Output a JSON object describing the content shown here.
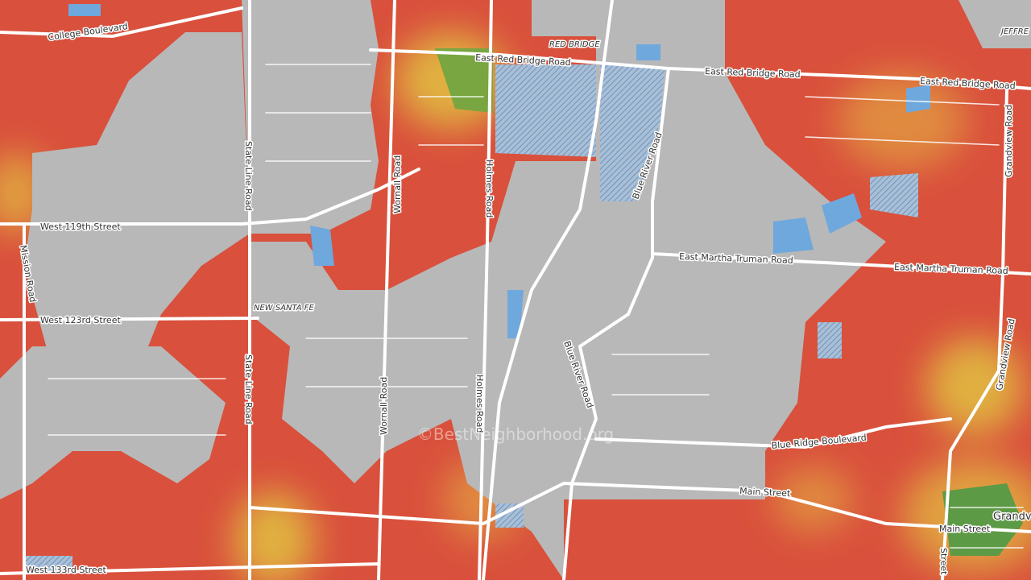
{
  "labels": [
    {
      "text": "College Boulevard"
    },
    {
      "text": "RED BRIDGE"
    },
    {
      "text": "East Red Bridge Road"
    },
    {
      "text": "East Red Bridge Road"
    },
    {
      "text": "East Red Bridge Road"
    },
    {
      "text": "JEFFRE"
    },
    {
      "text": "State Line Road"
    },
    {
      "text": "State Line Road"
    },
    {
      "text": "Wornall Road"
    },
    {
      "text": "Wornall Road"
    },
    {
      "text": "Holmes Road"
    },
    {
      "text": "Holmes Road"
    },
    {
      "text": "Blue River Road"
    },
    {
      "text": "Blue River Road"
    },
    {
      "text": "West 119th Street"
    },
    {
      "text": "Mission Road"
    },
    {
      "text": "East Martha Truman Road"
    },
    {
      "text": "East Martha Truman Road"
    },
    {
      "text": "West 123rd Street"
    },
    {
      "text": "NEW SANTA FE"
    },
    {
      "text": "Grandview Road"
    },
    {
      "text": "Grandview Road"
    },
    {
      "text": "Blue Ridge Boulevard"
    },
    {
      "text": "Main Street"
    },
    {
      "text": "Main Street"
    },
    {
      "text": "Grandv"
    },
    {
      "text": "West 133rd Street"
    },
    {
      "text": "Street"
    },
    {
      "text": "©BestNeighborhood.org"
    }
  ]
}
